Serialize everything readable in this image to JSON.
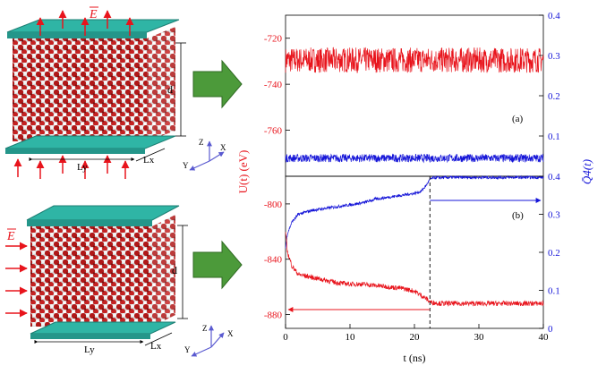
{
  "labels": {
    "field_top": "E",
    "field_bottom": "E",
    "d_top": "d",
    "d_bottom": "d",
    "ly_top": "Ly",
    "lx_top": "Lx",
    "ly_bottom": "Ly",
    "lx_bottom": "Lx",
    "axis_z": "Z",
    "axis_x": "X",
    "axis_y": "Y"
  },
  "colors": {
    "energy": "#e8141c",
    "order": "#1515d8",
    "slab": "#2fb5a5",
    "arrow": "#4c9a3a",
    "field_arrow": "#e8141c",
    "axes_triad": "#5a5ad0"
  },
  "chart_data": [
    {
      "type": "line",
      "panel_label": "(a)",
      "xlim": [
        0,
        40
      ],
      "ylim_left": [
        -780,
        -710
      ],
      "ylim_right": [
        0,
        0.4
      ],
      "left_ticks": [
        "-720",
        "-740",
        "-760"
      ],
      "right_ticks": [
        "0.4",
        "0.3",
        "0.2",
        "0.1"
      ],
      "series": [
        {
          "axis": "left",
          "mean": -729.5,
          "noise": 5.5,
          "values_note": "flat, strongly fluctuating"
        },
        {
          "axis": "right",
          "mean": 0.045,
          "noise": 0.01
        }
      ]
    },
    {
      "type": "line",
      "panel_label": "(b)",
      "xlabel": "t (ns)",
      "xlim": [
        0,
        40
      ],
      "x_ticks": [
        "0",
        "10",
        "20",
        "30",
        "40"
      ],
      "ylim_left": [
        -890,
        -780
      ],
      "ylim_right": [
        0,
        0.4
      ],
      "left_ticks": [
        "-800",
        "-840",
        "-880"
      ],
      "right_ticks": [
        "0.4",
        "0.3",
        "0.2",
        "0.1",
        "0"
      ],
      "transition_time": 22.4,
      "series": [
        {
          "axis": "right",
          "points": [
            [
              0,
              0.21
            ],
            [
              0.3,
              0.25
            ],
            [
              1,
              0.28
            ],
            [
              2,
              0.3
            ],
            [
              4,
              0.31
            ],
            [
              6,
              0.315
            ],
            [
              8,
              0.32
            ],
            [
              10,
              0.325
            ],
            [
              12,
              0.33
            ],
            [
              14,
              0.34
            ],
            [
              16,
              0.345
            ],
            [
              18,
              0.35
            ],
            [
              20,
              0.355
            ],
            [
              21,
              0.36
            ],
            [
              21.8,
              0.375
            ],
            [
              22.4,
              0.392
            ],
            [
              23,
              0.396
            ],
            [
              26,
              0.397
            ],
            [
              30,
              0.397
            ],
            [
              35,
              0.397
            ],
            [
              40,
              0.397
            ]
          ],
          "noise": 0.004
        },
        {
          "axis": "left",
          "points": [
            [
              0,
              -820
            ],
            [
              0.3,
              -835
            ],
            [
              1,
              -845
            ],
            [
              2,
              -851
            ],
            [
              4,
              -853
            ],
            [
              6,
              -855
            ],
            [
              8,
              -857
            ],
            [
              10,
              -858
            ],
            [
              12,
              -858
            ],
            [
              14,
              -859
            ],
            [
              16,
              -860
            ],
            [
              18,
              -861
            ],
            [
              20,
              -863
            ],
            [
              21,
              -866
            ],
            [
              22,
              -869
            ],
            [
              22.4,
              -871
            ],
            [
              24,
              -872
            ],
            [
              30,
              -872
            ],
            [
              35,
              -872
            ],
            [
              40,
              -872
            ]
          ],
          "noise": 1.8
        }
      ]
    }
  ],
  "axes_text": {
    "left_label": "U(t) (eV)",
    "right_label": "Q̄4(t)"
  }
}
